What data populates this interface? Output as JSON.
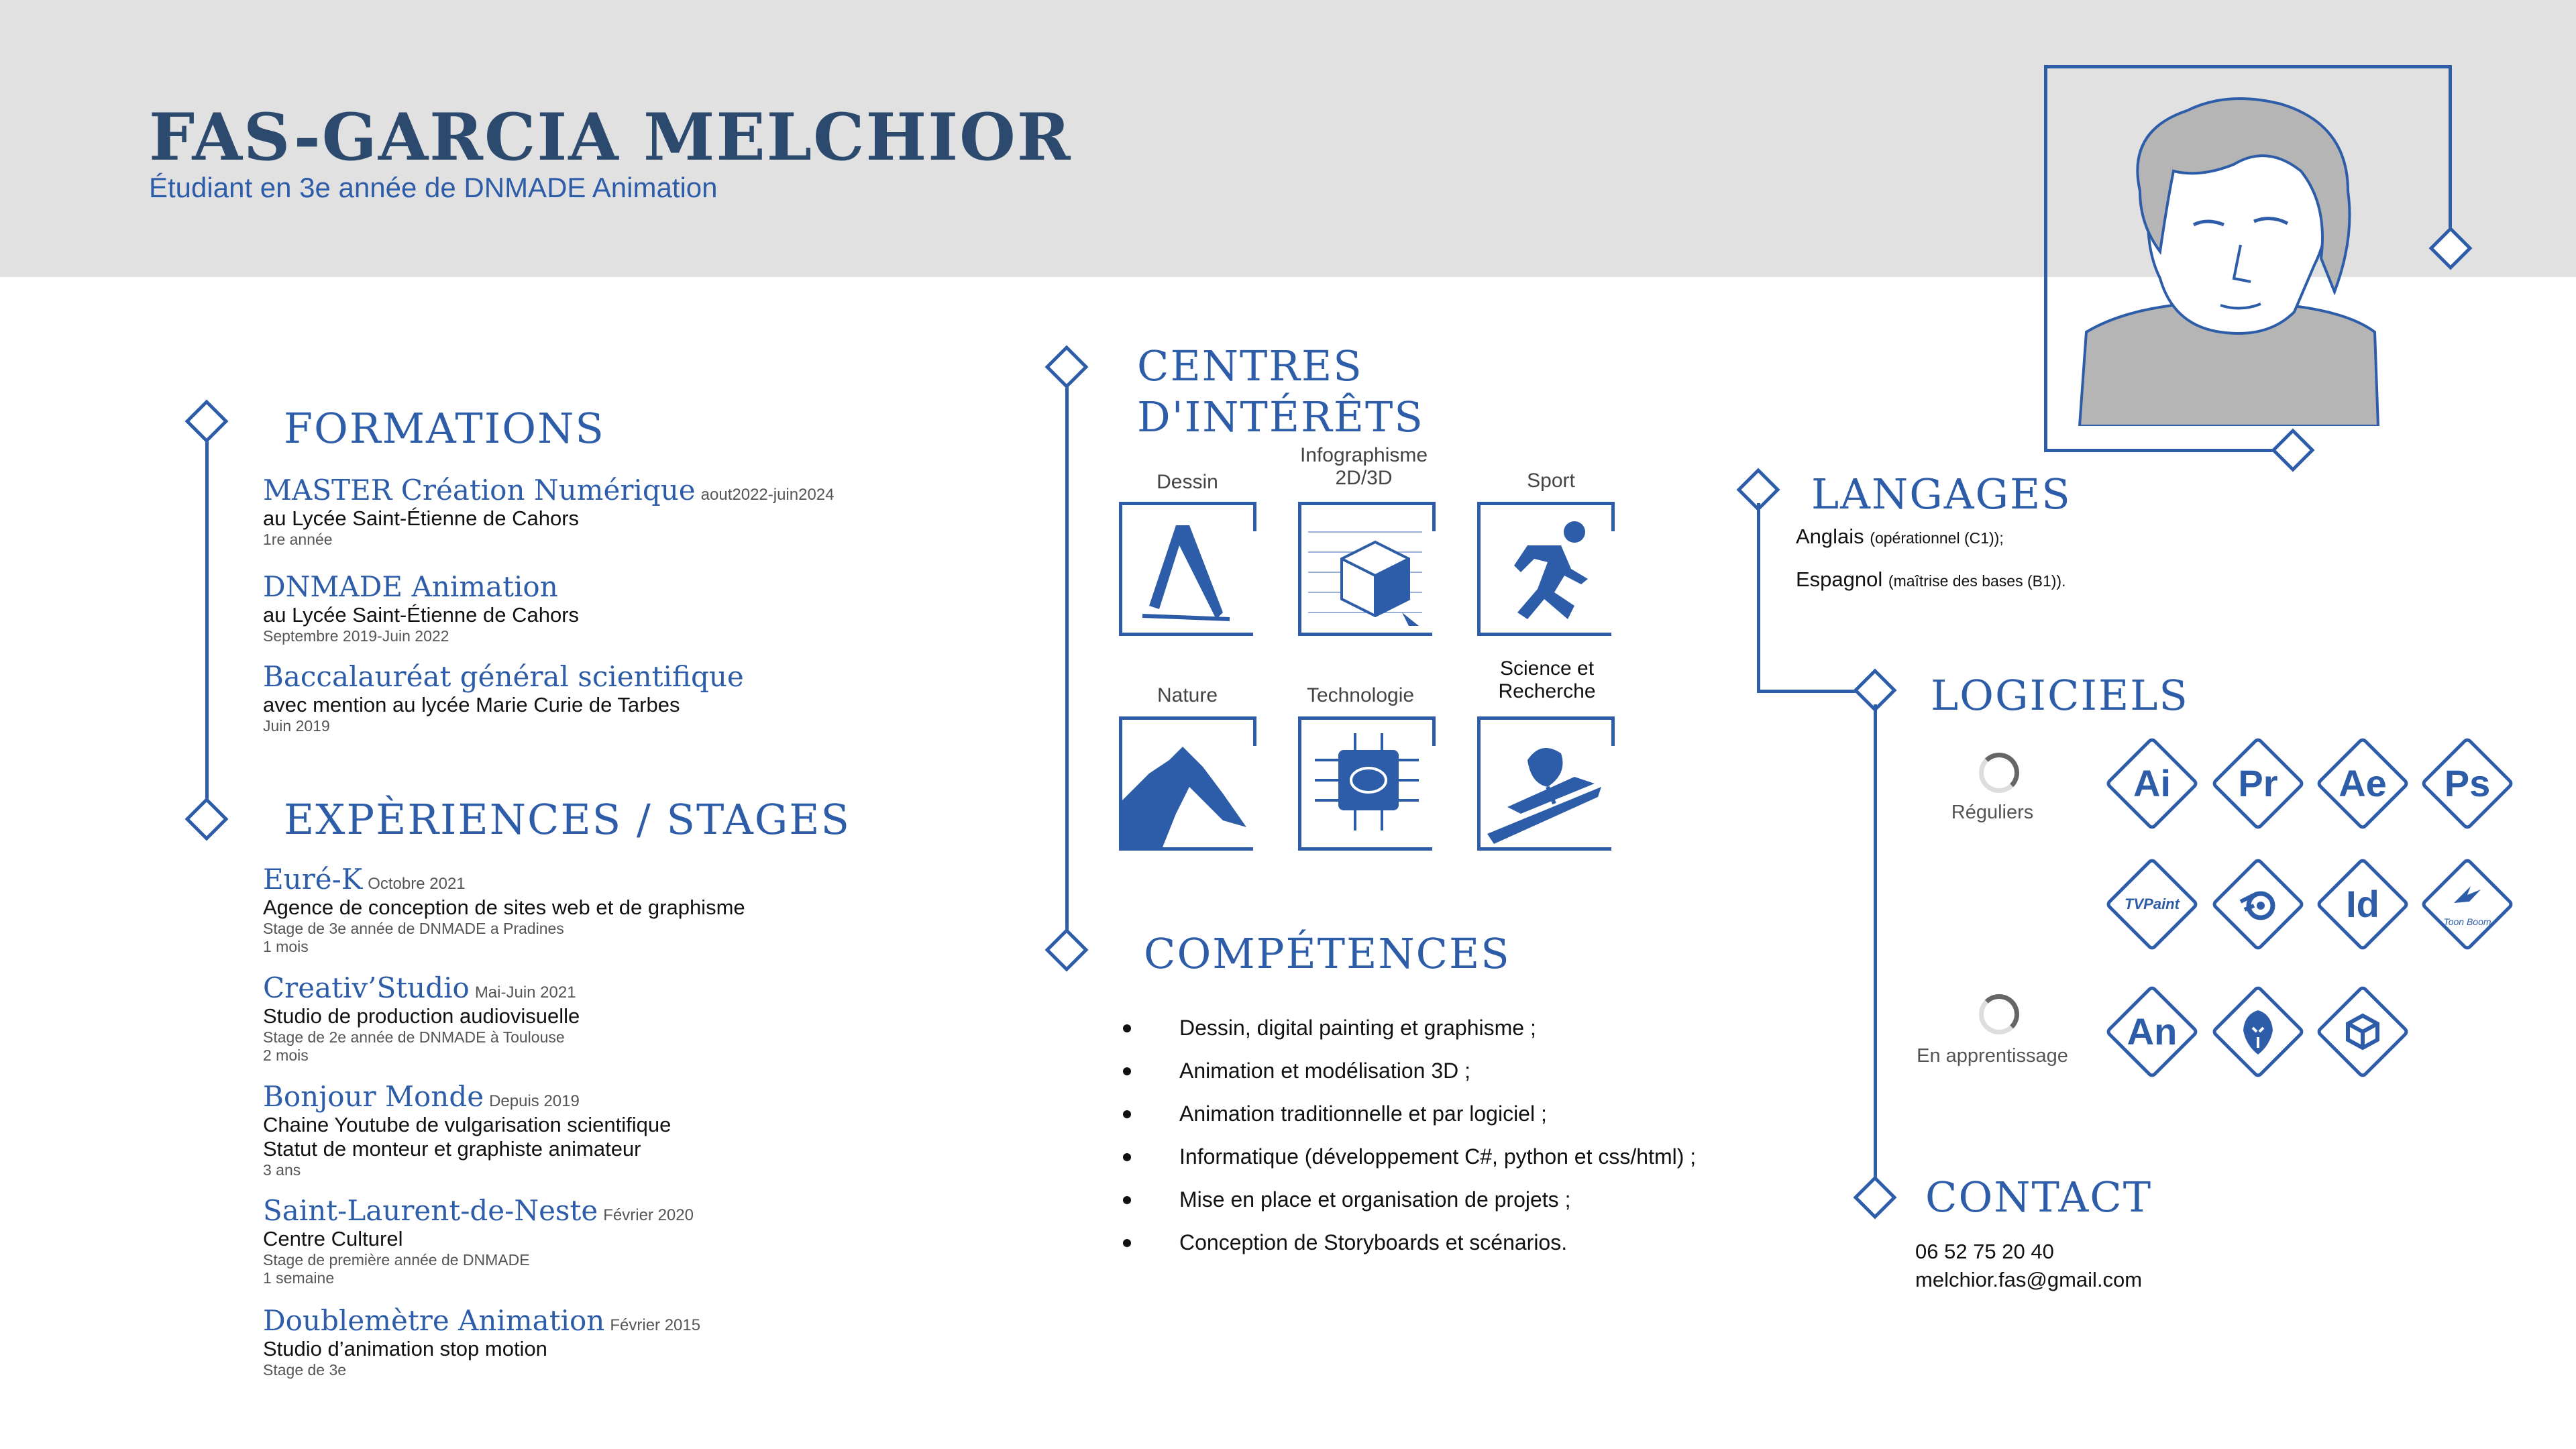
{
  "header": {
    "name": "FAS-GARCIA MELCHIOR",
    "subtitle": "Étudiant en 3e année de DNMADE Animation"
  },
  "formations": {
    "title": "FORMATIONS",
    "items": [
      {
        "title": "MASTER Création Numérique",
        "date": "aout2022-juin2024",
        "line": "au Lycée Saint-Étienne de Cahors",
        "small": "1re année"
      },
      {
        "title": "DNMADE Animation",
        "date": "",
        "line": "au Lycée Saint-Étienne de Cahors",
        "small": "Septembre 2019-Juin 2022"
      },
      {
        "title": "Baccalauréat général scientifique",
        "date": "",
        "line": "avec mention au lycée Marie Curie de Tarbes",
        "small": "Juin 2019"
      }
    ]
  },
  "experiences": {
    "title": "EXPÈRIENCES / STAGES",
    "items": [
      {
        "title": "Euré-K",
        "date": "Octobre 2021",
        "lines": [
          "Agence de conception de sites web et de graphisme"
        ],
        "smalls": [
          "Stage de 3e année de DNMADE a Pradines",
          "1 mois"
        ]
      },
      {
        "title": "Creativ’Studio",
        "date": "Mai-Juin 2021",
        "lines": [
          "Studio de production audiovisuelle"
        ],
        "smalls": [
          "Stage de 2e année de DNMADE à Toulouse",
          "2 mois"
        ]
      },
      {
        "title": "Bonjour Monde",
        "date": "Depuis 2019",
        "lines": [
          "Chaine Youtube de vulgarisation scientifique",
          "Statut de monteur et graphiste animateur"
        ],
        "smalls": [
          "3 ans"
        ]
      },
      {
        "title": "Saint-Laurent-de-Neste",
        "date": "Février 2020",
        "lines": [
          "Centre Culturel"
        ],
        "smalls": [
          "Stage de première année de DNMADE",
          "1 semaine"
        ]
      },
      {
        "title": "Doublemètre Animation",
        "date": "Février 2015",
        "lines": [
          "Studio d’animation stop motion"
        ],
        "smalls": [
          "Stage de 3e"
        ]
      }
    ]
  },
  "interests": {
    "title_line1": "CENTRES",
    "title_line2": "D'INTÉRÊTS",
    "items": [
      {
        "label": "Dessin",
        "icon": "drawing-icon"
      },
      {
        "label": "Infographisme 2D/3D",
        "icon": "cube-icon"
      },
      {
        "label": "Sport",
        "icon": "runner-icon"
      },
      {
        "label": "Nature",
        "icon": "mountain-icon"
      },
      {
        "label": "Technologie",
        "icon": "chip-icon"
      },
      {
        "label": "Science et Recherche",
        "icon": "satellite-icon"
      }
    ]
  },
  "competences": {
    "title": "COMPÉTENCES",
    "items": [
      "Dessin, digital painting et graphisme ;",
      "Animation et modélisation 3D ;",
      "Animation traditionnelle et par logiciel ;",
      "Informatique (développement C#, python et css/html) ;",
      "Mise en place et organisation de projets ;",
      "Conception de Storyboards et scénarios."
    ]
  },
  "langages": {
    "title": "LANGAGES",
    "items": [
      {
        "name": "Anglais",
        "level": "(opérationnel (C1));"
      },
      {
        "name": "Espagnol",
        "level": "(maîtrise des bases (B1))."
      }
    ]
  },
  "logiciels": {
    "title": "LOGICIELS",
    "reguliers_label": "Réguliers",
    "apprentissage_label": "En apprentissage",
    "reguliers": [
      "Ai",
      "Pr",
      "Ae",
      "Ps",
      "TVPaint",
      "blender",
      "Id",
      "Toon Boom"
    ],
    "apprentissage": [
      "An",
      "unreal",
      "unity"
    ]
  },
  "contact": {
    "title": "CONTACT",
    "phone": "06 52 75 20 40",
    "email": "melchior.fas@gmail.com"
  },
  "colors": {
    "accent": "#2d5ca8",
    "header_bg": "#e1e1e1",
    "name": "#2c4a6e"
  }
}
